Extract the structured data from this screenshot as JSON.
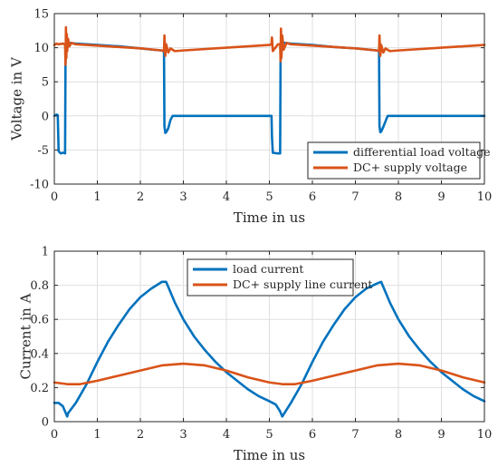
{
  "colors": {
    "blue": "#0072BD",
    "orange": "#D95319",
    "grid": "#dfdfdf",
    "axis": "#262626"
  },
  "chart_data": [
    {
      "type": "line",
      "xlabel": "Time in us",
      "ylabel": "Voltage in V",
      "xlim": [
        0,
        10
      ],
      "ylim": [
        -10,
        15
      ],
      "xticks": [
        0,
        1,
        2,
        3,
        4,
        5,
        6,
        7,
        8,
        9,
        10
      ],
      "yticks": [
        -10,
        -5,
        0,
        5,
        10,
        15
      ],
      "grid": true,
      "legend_position": "bottom-right",
      "series": [
        {
          "name": "differential load voltage",
          "color": "#0072BD",
          "points": [
            [
              0,
              0
            ],
            [
              0.05,
              0.2
            ],
            [
              0.08,
              0.1
            ],
            [
              0.1,
              -5.2
            ],
            [
              0.15,
              -5.5
            ],
            [
              0.2,
              -5.4
            ],
            [
              0.25,
              -5.5
            ],
            [
              0.26,
              8
            ],
            [
              0.27,
              10.8
            ],
            [
              0.28,
              10.6
            ],
            [
              0.3,
              10.9
            ],
            [
              0.35,
              10.7
            ],
            [
              0.5,
              10.6
            ],
            [
              1.0,
              10.4
            ],
            [
              1.5,
              10.2
            ],
            [
              2.0,
              9.9
            ],
            [
              2.3,
              9.7
            ],
            [
              2.5,
              9.6
            ],
            [
              2.55,
              9.5
            ],
            [
              2.56,
              -1.5
            ],
            [
              2.58,
              -2.5
            ],
            [
              2.6,
              -2.4
            ],
            [
              2.65,
              -1.8
            ],
            [
              2.7,
              -0.6
            ],
            [
              2.75,
              0
            ],
            [
              3.0,
              0
            ],
            [
              4.0,
              0
            ],
            [
              5.05,
              0
            ],
            [
              5.06,
              -3
            ],
            [
              5.08,
              -5.4
            ],
            [
              5.2,
              -5.5
            ],
            [
              5.25,
              -5.5
            ],
            [
              5.26,
              8
            ],
            [
              5.27,
              10.9
            ],
            [
              5.3,
              10.9
            ],
            [
              5.35,
              10.7
            ],
            [
              5.5,
              10.6
            ],
            [
              6.0,
              10.4
            ],
            [
              6.5,
              10.1
            ],
            [
              7.0,
              9.9
            ],
            [
              7.5,
              9.6
            ],
            [
              7.55,
              9.5
            ],
            [
              7.56,
              -1.5
            ],
            [
              7.58,
              -2.4
            ],
            [
              7.6,
              -2.3
            ],
            [
              7.65,
              -1.6
            ],
            [
              7.7,
              -0.8
            ],
            [
              7.75,
              0
            ],
            [
              8.0,
              0
            ],
            [
              9.0,
              0
            ],
            [
              10,
              0
            ]
          ]
        },
        {
          "name": "DC+ supply voltage",
          "color": "#D95319",
          "points": [
            [
              0,
              10.4
            ],
            [
              0.05,
              10.6
            ],
            [
              0.1,
              10.5
            ],
            [
              0.2,
              10.6
            ],
            [
              0.25,
              10.5
            ],
            [
              0.26,
              7.5
            ],
            [
              0.27,
              13.0
            ],
            [
              0.28,
              8.5
            ],
            [
              0.29,
              12.0
            ],
            [
              0.3,
              9.5
            ],
            [
              0.32,
              11.3
            ],
            [
              0.35,
              10.2
            ],
            [
              0.4,
              10.7
            ],
            [
              0.5,
              10.5
            ],
            [
              1.0,
              10.3
            ],
            [
              1.5,
              10.1
            ],
            [
              2.0,
              9.9
            ],
            [
              2.5,
              9.6
            ],
            [
              2.55,
              9.5
            ],
            [
              2.56,
              11.8
            ],
            [
              2.58,
              8.8
            ],
            [
              2.6,
              10.5
            ],
            [
              2.65,
              9.3
            ],
            [
              2.7,
              9.9
            ],
            [
              2.8,
              9.5
            ],
            [
              3.0,
              9.6
            ],
            [
              4.0,
              10.0
            ],
            [
              5.0,
              10.4
            ],
            [
              5.05,
              10.5
            ],
            [
              5.06,
              11.5
            ],
            [
              5.08,
              9.5
            ],
            [
              5.2,
              10.5
            ],
            [
              5.25,
              10.5
            ],
            [
              5.26,
              8.0
            ],
            [
              5.27,
              12.8
            ],
            [
              5.28,
              8.5
            ],
            [
              5.3,
              11.8
            ],
            [
              5.33,
              9.7
            ],
            [
              5.4,
              10.7
            ],
            [
              5.5,
              10.5
            ],
            [
              6.0,
              10.3
            ],
            [
              6.5,
              10.1
            ],
            [
              7.0,
              9.9
            ],
            [
              7.5,
              9.6
            ],
            [
              7.55,
              9.5
            ],
            [
              7.56,
              11.8
            ],
            [
              7.58,
              8.8
            ],
            [
              7.6,
              10.4
            ],
            [
              7.65,
              9.3
            ],
            [
              7.7,
              9.9
            ],
            [
              7.8,
              9.5
            ],
            [
              8.0,
              9.6
            ],
            [
              9.0,
              10.0
            ],
            [
              10,
              10.4
            ]
          ]
        }
      ]
    },
    {
      "type": "line",
      "xlabel": "Time in us",
      "ylabel": "Current in A",
      "xlim": [
        0,
        10
      ],
      "ylim": [
        0,
        1
      ],
      "xticks": [
        0,
        1,
        2,
        3,
        4,
        5,
        6,
        7,
        8,
        9,
        10
      ],
      "yticks": [
        0,
        0.2,
        0.4,
        0.6,
        0.8,
        1
      ],
      "grid": true,
      "legend_position": "top-center",
      "series": [
        {
          "name": "load current",
          "color": "#0072BD",
          "points": [
            [
              0,
              0.11
            ],
            [
              0.1,
              0.11
            ],
            [
              0.2,
              0.09
            ],
            [
              0.25,
              0.06
            ],
            [
              0.3,
              0.03
            ],
            [
              0.32,
              0.05
            ],
            [
              0.5,
              0.11
            ],
            [
              0.75,
              0.22
            ],
            [
              1.0,
              0.35
            ],
            [
              1.25,
              0.47
            ],
            [
              1.5,
              0.57
            ],
            [
              1.75,
              0.66
            ],
            [
              2.0,
              0.73
            ],
            [
              2.25,
              0.78
            ],
            [
              2.5,
              0.82
            ],
            [
              2.6,
              0.82
            ],
            [
              2.8,
              0.7
            ],
            [
              3.0,
              0.6
            ],
            [
              3.25,
              0.5
            ],
            [
              3.5,
              0.42
            ],
            [
              3.75,
              0.35
            ],
            [
              4.0,
              0.29
            ],
            [
              4.25,
              0.24
            ],
            [
              4.5,
              0.19
            ],
            [
              4.75,
              0.15
            ],
            [
              5.0,
              0.12
            ],
            [
              5.15,
              0.1
            ],
            [
              5.25,
              0.06
            ],
            [
              5.3,
              0.03
            ],
            [
              5.35,
              0.05
            ],
            [
              5.5,
              0.11
            ],
            [
              5.75,
              0.22
            ],
            [
              6.0,
              0.35
            ],
            [
              6.25,
              0.47
            ],
            [
              6.5,
              0.57
            ],
            [
              6.75,
              0.66
            ],
            [
              7.0,
              0.73
            ],
            [
              7.25,
              0.78
            ],
            [
              7.5,
              0.81
            ],
            [
              7.6,
              0.82
            ],
            [
              7.8,
              0.7
            ],
            [
              8.0,
              0.6
            ],
            [
              8.25,
              0.5
            ],
            [
              8.5,
              0.42
            ],
            [
              8.75,
              0.35
            ],
            [
              9.0,
              0.29
            ],
            [
              9.25,
              0.24
            ],
            [
              9.5,
              0.19
            ],
            [
              9.75,
              0.15
            ],
            [
              10,
              0.12
            ]
          ]
        },
        {
          "name": "DC+ supply line current",
          "color": "#D95319",
          "points": [
            [
              0,
              0.23
            ],
            [
              0.3,
              0.22
            ],
            [
              0.6,
              0.22
            ],
            [
              1.0,
              0.24
            ],
            [
              1.5,
              0.27
            ],
            [
              2.0,
              0.3
            ],
            [
              2.5,
              0.33
            ],
            [
              3.0,
              0.34
            ],
            [
              3.5,
              0.33
            ],
            [
              4.0,
              0.3
            ],
            [
              4.5,
              0.26
            ],
            [
              5.0,
              0.23
            ],
            [
              5.3,
              0.22
            ],
            [
              5.6,
              0.22
            ],
            [
              6.0,
              0.24
            ],
            [
              6.5,
              0.27
            ],
            [
              7.0,
              0.3
            ],
            [
              7.5,
              0.33
            ],
            [
              8.0,
              0.34
            ],
            [
              8.5,
              0.33
            ],
            [
              9.0,
              0.3
            ],
            [
              9.5,
              0.26
            ],
            [
              10,
              0.23
            ]
          ]
        }
      ]
    }
  ]
}
